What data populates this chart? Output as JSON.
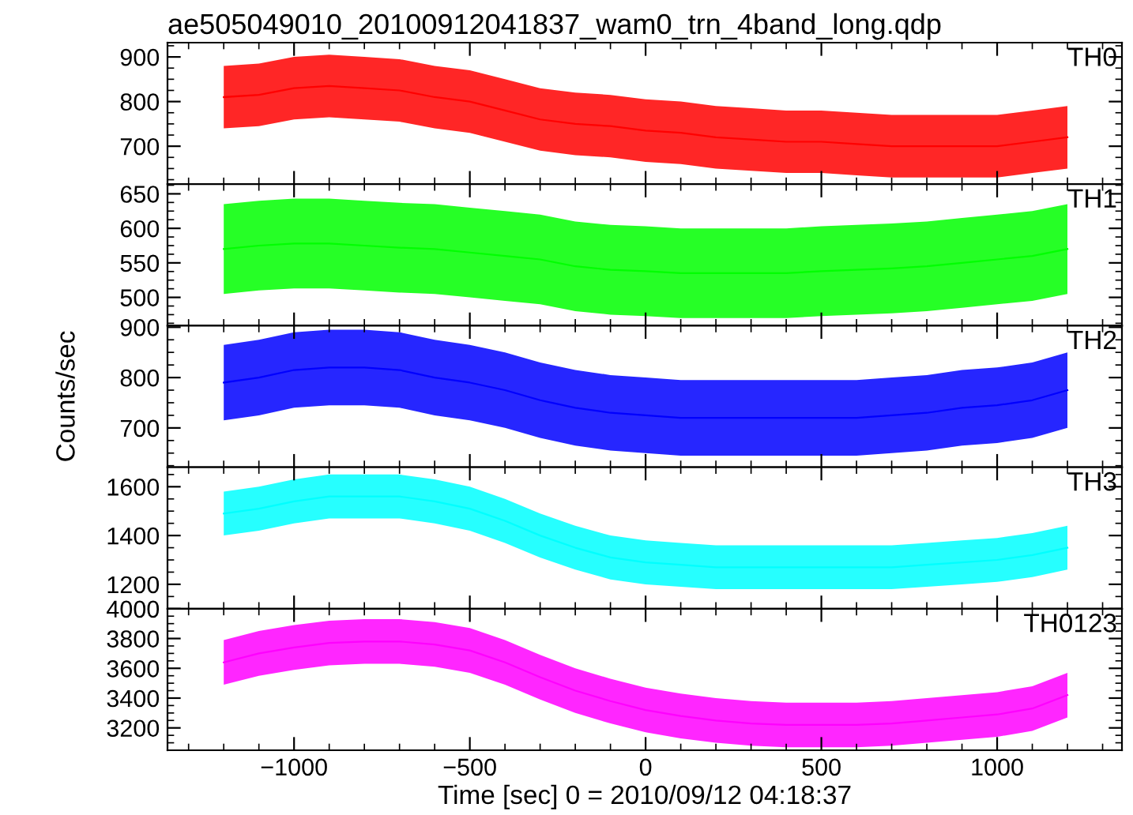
{
  "chart_data": [
    {
      "type": "line",
      "title": "ae505049010_20100912041837_wam0_trn_4band_long.qdp",
      "x": [
        -1200,
        -1100,
        -1000,
        -900,
        -800,
        -700,
        -600,
        -500,
        -400,
        -300,
        -200,
        -100,
        0,
        100,
        200,
        300,
        400,
        500,
        600,
        700,
        800,
        900,
        1000,
        1100,
        1200
      ],
      "xlim": [
        -1360,
        1355
      ],
      "xticks": [
        -1000,
        -500,
        0,
        500,
        1000
      ],
      "ylim": [
        615,
        932
      ],
      "yticks": [
        700,
        800,
        900
      ],
      "tick_labels": "y",
      "series": [
        {
          "name": "TH0",
          "color": "#ff0000",
          "values": [
            810,
            815,
            830,
            835,
            830,
            825,
            810,
            800,
            780,
            760,
            750,
            745,
            735,
            730,
            720,
            715,
            710,
            710,
            705,
            700,
            700,
            700,
            700,
            710,
            720
          ],
          "lower": [
            740,
            745,
            760,
            765,
            760,
            755,
            740,
            730,
            710,
            690,
            680,
            675,
            665,
            660,
            650,
            645,
            640,
            640,
            635,
            630,
            630,
            630,
            630,
            640,
            650
          ],
          "upper": [
            880,
            885,
            900,
            905,
            900,
            895,
            880,
            870,
            850,
            830,
            820,
            815,
            805,
            800,
            790,
            785,
            780,
            780,
            775,
            770,
            770,
            770,
            770,
            780,
            790
          ]
        }
      ]
    },
    {
      "type": "line",
      "x": [
        -1200,
        -1100,
        -1000,
        -900,
        -800,
        -700,
        -600,
        -500,
        -400,
        -300,
        -200,
        -100,
        0,
        100,
        200,
        300,
        400,
        500,
        600,
        700,
        800,
        900,
        1000,
        1100,
        1200
      ],
      "xlim": [
        -1360,
        1355
      ],
      "xticks": [
        -1000,
        -500,
        0,
        500,
        1000
      ],
      "ylim": [
        459,
        664
      ],
      "yticks": [
        500,
        550,
        600,
        650
      ],
      "tick_labels": "y",
      "series": [
        {
          "name": "TH1",
          "color": "#00ff00",
          "values": [
            570,
            575,
            578,
            578,
            575,
            572,
            570,
            565,
            560,
            555,
            545,
            540,
            538,
            535,
            535,
            535,
            535,
            538,
            540,
            542,
            545,
            550,
            555,
            560,
            570
          ],
          "lower": [
            505,
            510,
            513,
            513,
            510,
            507,
            505,
            500,
            495,
            490,
            480,
            475,
            473,
            470,
            470,
            470,
            470,
            473,
            475,
            477,
            480,
            485,
            490,
            495,
            505
          ],
          "upper": [
            635,
            640,
            643,
            643,
            640,
            637,
            635,
            630,
            625,
            620,
            610,
            605,
            603,
            600,
            600,
            600,
            600,
            603,
            605,
            607,
            610,
            615,
            620,
            625,
            635
          ]
        }
      ]
    },
    {
      "type": "line",
      "ylabel": "Counts/sec",
      "x": [
        -1200,
        -1100,
        -1000,
        -900,
        -800,
        -700,
        -600,
        -500,
        -400,
        -300,
        -200,
        -100,
        0,
        100,
        200,
        300,
        400,
        500,
        600,
        700,
        800,
        900,
        1000,
        1100,
        1200
      ],
      "xlim": [
        -1360,
        1355
      ],
      "xticks": [
        -1000,
        -500,
        0,
        500,
        1000
      ],
      "ylim": [
        622,
        903
      ],
      "yticks": [
        700,
        800,
        900
      ],
      "tick_labels": "y",
      "series": [
        {
          "name": "TH2",
          "color": "#0000ff",
          "values": [
            790,
            800,
            815,
            820,
            820,
            815,
            800,
            790,
            775,
            755,
            740,
            730,
            725,
            720,
            720,
            720,
            720,
            720,
            720,
            725,
            730,
            740,
            745,
            755,
            775
          ],
          "lower": [
            715,
            725,
            740,
            745,
            745,
            740,
            725,
            715,
            700,
            680,
            665,
            655,
            650,
            645,
            645,
            645,
            645,
            645,
            645,
            650,
            655,
            665,
            670,
            680,
            700
          ],
          "upper": [
            865,
            875,
            890,
            895,
            895,
            890,
            875,
            865,
            850,
            830,
            815,
            805,
            800,
            795,
            795,
            795,
            795,
            795,
            795,
            800,
            805,
            815,
            820,
            830,
            850
          ]
        }
      ]
    },
    {
      "type": "line",
      "x": [
        -1200,
        -1100,
        -1000,
        -900,
        -800,
        -700,
        -600,
        -500,
        -400,
        -300,
        -200,
        -100,
        0,
        100,
        200,
        300,
        400,
        500,
        600,
        700,
        800,
        900,
        1000,
        1100,
        1200
      ],
      "xlim": [
        -1360,
        1355
      ],
      "xticks": [
        -1000,
        -500,
        0,
        500,
        1000
      ],
      "ylim": [
        1100,
        1680
      ],
      "yticks": [
        1200,
        1400,
        1600
      ],
      "tick_labels": "y",
      "series": [
        {
          "name": "TH3",
          "color": "#00ffff",
          "values": [
            1490,
            1510,
            1540,
            1560,
            1560,
            1560,
            1540,
            1510,
            1460,
            1400,
            1350,
            1310,
            1290,
            1280,
            1270,
            1270,
            1270,
            1270,
            1270,
            1270,
            1280,
            1290,
            1300,
            1320,
            1350
          ],
          "lower": [
            1400,
            1420,
            1450,
            1470,
            1470,
            1470,
            1450,
            1420,
            1370,
            1310,
            1260,
            1220,
            1200,
            1190,
            1180,
            1180,
            1180,
            1180,
            1180,
            1180,
            1190,
            1200,
            1210,
            1230,
            1260
          ],
          "upper": [
            1580,
            1600,
            1630,
            1650,
            1650,
            1650,
            1630,
            1600,
            1550,
            1490,
            1440,
            1400,
            1380,
            1370,
            1360,
            1360,
            1360,
            1360,
            1360,
            1360,
            1370,
            1380,
            1390,
            1410,
            1440
          ]
        }
      ]
    },
    {
      "type": "line",
      "xlabel": "Time [sec] 0 = 2010/09/12 04:18:37",
      "x": [
        -1200,
        -1100,
        -1000,
        -900,
        -800,
        -700,
        -600,
        -500,
        -400,
        -300,
        -200,
        -100,
        0,
        100,
        200,
        300,
        400,
        500,
        600,
        700,
        800,
        900,
        1000,
        1100,
        1200
      ],
      "xlim": [
        -1360,
        1355
      ],
      "xticks": [
        -1000,
        -500,
        0,
        500,
        1000
      ],
      "ylim": [
        3050,
        4000
      ],
      "yticks": [
        3200,
        3400,
        3600,
        3800,
        4000
      ],
      "series": [
        {
          "name": "TH0123",
          "color": "#ff00ff",
          "values": [
            3640,
            3700,
            3740,
            3770,
            3780,
            3780,
            3760,
            3720,
            3640,
            3540,
            3450,
            3380,
            3320,
            3280,
            3250,
            3230,
            3220,
            3220,
            3220,
            3230,
            3250,
            3270,
            3290,
            3330,
            3420
          ],
          "lower": [
            3490,
            3550,
            3590,
            3620,
            3630,
            3630,
            3610,
            3570,
            3490,
            3390,
            3300,
            3230,
            3170,
            3130,
            3100,
            3080,
            3070,
            3070,
            3070,
            3080,
            3100,
            3120,
            3140,
            3180,
            3270
          ],
          "upper": [
            3790,
            3850,
            3890,
            3920,
            3930,
            3930,
            3910,
            3870,
            3790,
            3690,
            3600,
            3530,
            3470,
            3430,
            3400,
            3380,
            3370,
            3370,
            3370,
            3380,
            3400,
            3420,
            3440,
            3480,
            3570
          ]
        }
      ]
    }
  ]
}
